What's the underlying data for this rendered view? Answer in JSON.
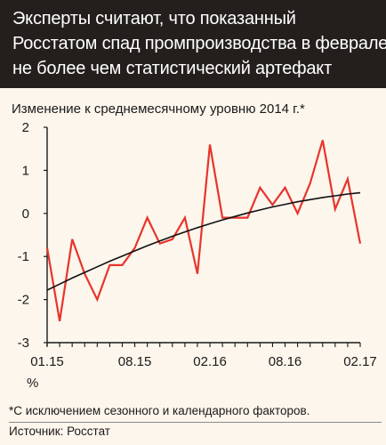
{
  "title_lines": [
    "Эксперты считают, что показанный",
    "Росстатом спад промпроизводства в феврале –",
    "не более чем статистический артефакт"
  ],
  "subtitle": "Изменение к среднемесячному уровню 2014 г.*",
  "footnote": "*С исключением сезонного и календарного факторов.",
  "source": "Источник: Росстат",
  "colors": {
    "header_bg": "#241f1c",
    "panel_bg": "#fcf6ec",
    "series": "#e8342c",
    "trend": "#111111"
  },
  "chart_data": {
    "type": "line",
    "ylabel": "%",
    "ylim": [
      -3,
      2
    ],
    "yticks": [
      "2",
      "1",
      "0",
      "-1",
      "-2",
      "-3"
    ],
    "xtick_labels": [
      "01.15",
      "08.15",
      "02.16",
      "08.16",
      "02.17"
    ],
    "x": [
      "01.15",
      "02.15",
      "03.15",
      "04.15",
      "05.15",
      "06.15",
      "07.15",
      "08.15",
      "09.15",
      "10.15",
      "11.15",
      "12.15",
      "01.16",
      "02.16",
      "03.16",
      "04.16",
      "05.16",
      "06.16",
      "07.16",
      "08.16",
      "09.16",
      "10.16",
      "11.16",
      "12.16",
      "01.17",
      "02.17"
    ],
    "series": [
      {
        "values": [
          -0.8,
          -2.5,
          -0.6,
          -1.4,
          -2.0,
          -1.2,
          -1.2,
          -0.8,
          -0.1,
          -0.7,
          -0.6,
          -0.1,
          -1.4,
          1.6,
          -0.1,
          -0.1,
          -0.1,
          0.6,
          0.2,
          0.6,
          0.0,
          0.7,
          1.7,
          0.1,
          0.8,
          -0.7
        ]
      },
      {
        "values": [
          -1.78,
          -1.64,
          -1.5,
          -1.37,
          -1.24,
          -1.11,
          -0.99,
          -0.87,
          -0.75,
          -0.64,
          -0.53,
          -0.43,
          -0.33,
          -0.24,
          -0.15,
          -0.07,
          0.01,
          0.08,
          0.15,
          0.21,
          0.27,
          0.32,
          0.37,
          0.41,
          0.45,
          0.48
        ]
      }
    ],
    "grid": false
  }
}
